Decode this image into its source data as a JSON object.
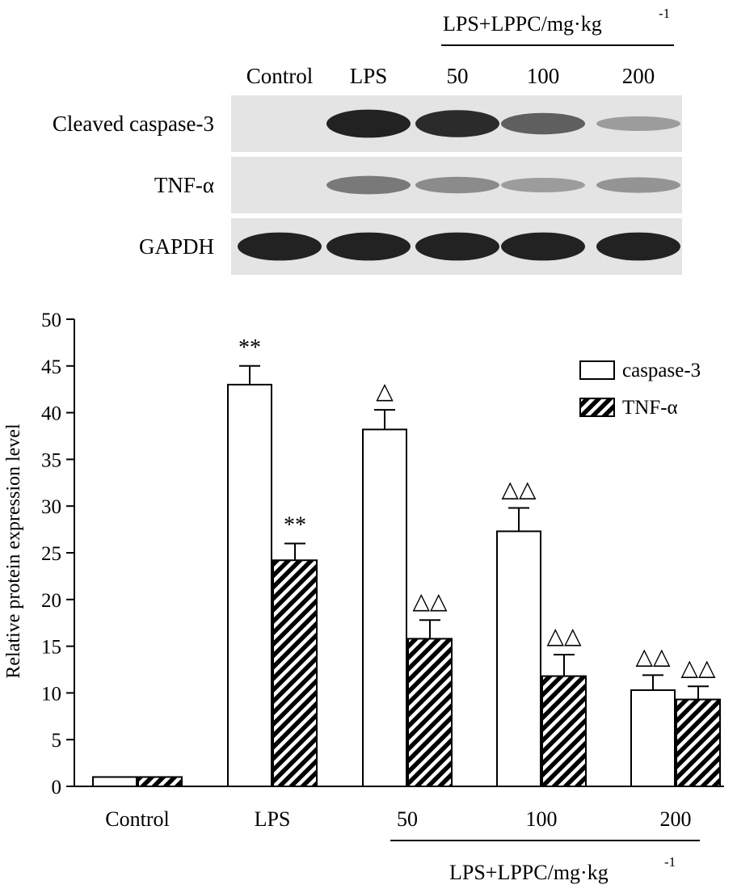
{
  "blot": {
    "group_header": "LPS+LPPC/mg·kg",
    "group_header_sup": "-1",
    "lane_labels": [
      "Control",
      "LPS",
      "50",
      "100",
      "200"
    ],
    "rows": [
      {
        "label": "Cleaved caspase-3",
        "band_intensity": [
          0.0,
          0.95,
          0.9,
          0.6,
          0.25
        ]
      },
      {
        "label": "TNF-α",
        "band_intensity": [
          0.0,
          0.45,
          0.35,
          0.25,
          0.3
        ]
      },
      {
        "label": "GAPDH",
        "band_intensity": [
          0.95,
          0.95,
          0.95,
          0.95,
          0.95
        ]
      }
    ]
  },
  "chart_data": {
    "type": "bar",
    "categories": [
      "Control",
      "LPS",
      "50",
      "100",
      "200"
    ],
    "series": [
      {
        "name": "caspase-3",
        "values": [
          1.0,
          43.0,
          38.2,
          27.3,
          10.3
        ],
        "errors": [
          0.0,
          2.0,
          2.1,
          2.5,
          1.6
        ],
        "annotations": [
          "",
          "**",
          "△",
          "△△",
          "△△"
        ]
      },
      {
        "name": "TNF-α",
        "values": [
          1.0,
          24.2,
          15.8,
          11.8,
          9.3
        ],
        "errors": [
          0.0,
          1.8,
          2.0,
          2.3,
          1.4
        ],
        "annotations": [
          "",
          "**",
          "△△",
          "△△",
          "△△"
        ]
      }
    ],
    "ylabel": "Relative protein expression level",
    "xlabel": "",
    "ylim": [
      0,
      50
    ],
    "yticks": [
      0,
      5,
      10,
      15,
      20,
      25,
      30,
      35,
      40,
      45,
      50
    ],
    "group_label": "LPS+LPPC/mg·kg",
    "group_label_sup": "-1",
    "legend_position": "top-right",
    "grid": false
  }
}
